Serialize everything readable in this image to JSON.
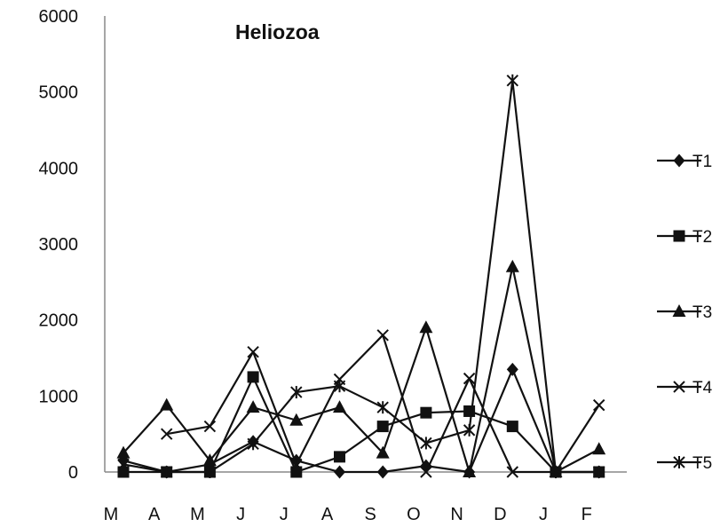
{
  "chart_data": {
    "type": "line",
    "title": "Heliozoa",
    "xlabel": "",
    "ylabel": "",
    "categories": [
      "M",
      "A",
      "M",
      "J",
      "J",
      "A",
      "S",
      "O",
      "N",
      "D",
      "J",
      "F"
    ],
    "ylim": [
      0,
      6000
    ],
    "yticks": [
      0,
      1000,
      2000,
      3000,
      4000,
      5000,
      6000
    ],
    "grid": false,
    "legend_position": "right",
    "line_color": "#111111",
    "series": [
      {
        "name": "T1",
        "marker": "diamond",
        "values": [
          150,
          0,
          100,
          400,
          150,
          0,
          0,
          80,
          0,
          1350,
          0,
          0
        ]
      },
      {
        "name": "T2",
        "marker": "square",
        "values": [
          0,
          0,
          0,
          1250,
          0,
          200,
          600,
          780,
          800,
          600,
          0,
          0
        ]
      },
      {
        "name": "T3",
        "marker": "triangle",
        "values": [
          250,
          880,
          150,
          850,
          680,
          850,
          250,
          1900,
          0,
          2700,
          0,
          300
        ]
      },
      {
        "name": "T4",
        "marker": "x",
        "values": [
          null,
          500,
          600,
          1580,
          100,
          1220,
          1800,
          0,
          1230,
          0,
          0,
          880
        ]
      },
      {
        "name": "T5",
        "marker": "star",
        "values": [
          100,
          0,
          0,
          370,
          1050,
          1130,
          850,
          380,
          550,
          5150,
          0,
          0
        ]
      }
    ]
  }
}
